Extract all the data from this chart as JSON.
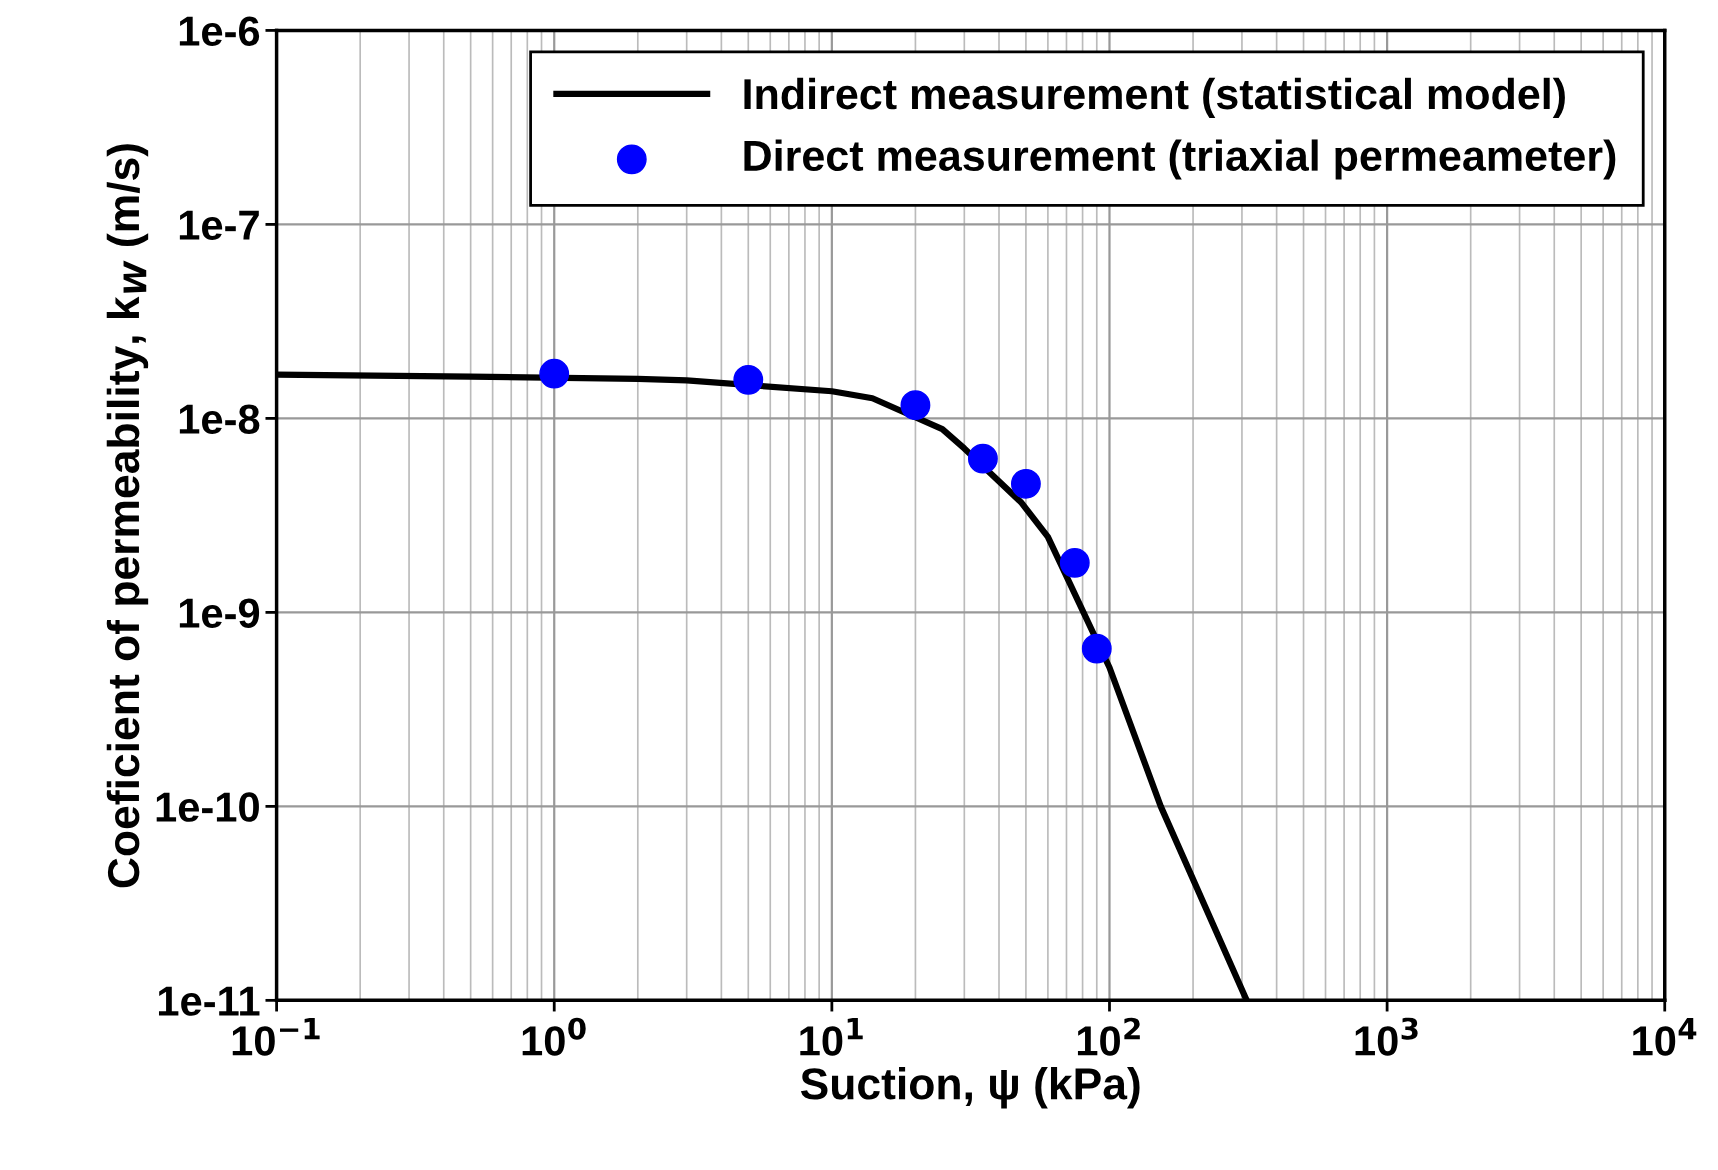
{
  "chart_data": {
    "type": "line",
    "xlabel": "Suction, ψ (kPa)",
    "ylabel": "Coeficient of permeability, k$_{W}$ (m/s)",
    "log": "xy",
    "xlim": [
      0.1,
      10000
    ],
    "ylim": [
      1e-11,
      1e-06
    ],
    "xticks": [
      {
        "value": 0.1,
        "label": "10$^{−1}$"
      },
      {
        "value": 1,
        "label": "10$^{0}$"
      },
      {
        "value": 10,
        "label": "10$^{1}$"
      },
      {
        "value": 100,
        "label": "10$^{2}$"
      },
      {
        "value": 1000,
        "label": "10$^{3}$"
      },
      {
        "value": 10000,
        "label": "10$^{4}$"
      }
    ],
    "yticks": [
      {
        "value": 1e-11,
        "label": "1e-11"
      },
      {
        "value": 1e-10,
        "label": "1e-10"
      },
      {
        "value": 1e-09,
        "label": "1e-9"
      },
      {
        "value": 1e-08,
        "label": "1e-8"
      },
      {
        "value": 1e-07,
        "label": "1e-7"
      },
      {
        "value": 1e-06,
        "label": "1e-6"
      }
    ],
    "grid": true,
    "legend": "top right",
    "series": [
      {
        "name": "Indirect measurement (statistical model)",
        "color": "#000000",
        "marker": "none",
        "line_style": "solid",
        "x": [
          0.1,
          0.5,
          2,
          3,
          10,
          14,
          25,
          30,
          48,
          60,
          100,
          153,
          312
        ],
        "values": [
          1.68e-08,
          1.64e-08,
          1.6e-08,
          1.57e-08,
          1.38e-08,
          1.27e-08,
          8.8e-09,
          7e-09,
          3.7e-09,
          2.45e-09,
          5.2e-10,
          1e-10,
          1e-11
        ]
      },
      {
        "name": "Direct measurement (triaxial permeameter)",
        "type": "scatter",
        "color": "#0000ff",
        "marker": "circle",
        "x": [
          1,
          5,
          20,
          35,
          50,
          75,
          90
        ],
        "values": [
          1.7e-08,
          1.58e-08,
          1.17e-08,
          6.2e-09,
          4.6e-09,
          1.8e-09,
          6.5e-10
        ]
      }
    ]
  }
}
